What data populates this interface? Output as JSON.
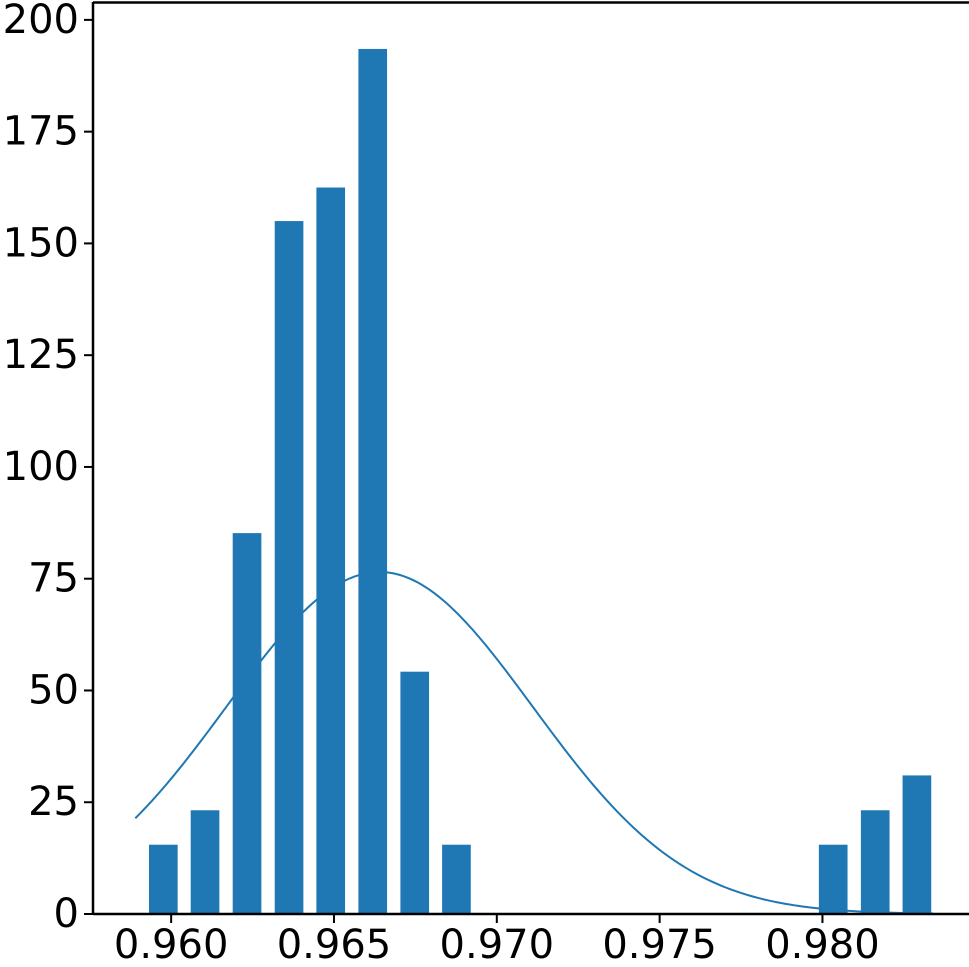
{
  "chart_data": {
    "type": "bar",
    "title": "",
    "xlabel": "",
    "ylabel": "",
    "xlim": [
      0.9576,
      0.9845
    ],
    "ylim": [
      0,
      204
    ],
    "grid": false,
    "legend": "none",
    "bar_color": "#1f77b4",
    "bar_width": 0.00088,
    "x_ticks": [
      {
        "value": 0.96,
        "label": "0.960"
      },
      {
        "value": 0.965,
        "label": "0.965"
      },
      {
        "value": 0.97,
        "label": "0.970"
      },
      {
        "value": 0.975,
        "label": "0.975"
      },
      {
        "value": 0.98,
        "label": "0.980"
      }
    ],
    "y_ticks": [
      {
        "value": 0,
        "label": "0"
      },
      {
        "value": 25,
        "label": "25"
      },
      {
        "value": 50,
        "label": "50"
      },
      {
        "value": 75,
        "label": "75"
      },
      {
        "value": 100,
        "label": "100"
      },
      {
        "value": 125,
        "label": "125"
      },
      {
        "value": 150,
        "label": "150"
      },
      {
        "value": 175,
        "label": "175"
      },
      {
        "value": 200,
        "label": "200"
      }
    ],
    "series": [
      {
        "type": "bar",
        "x": [
          0.95976,
          0.96104,
          0.96233,
          0.96362,
          0.9649,
          0.96619,
          0.96748,
          0.96876,
          0.98033,
          0.98162,
          0.9829
        ],
        "values": [
          15.5,
          23.2,
          85.2,
          155,
          162.5,
          193.5,
          54.2,
          15.5,
          15.5,
          23.2,
          31
        ]
      },
      {
        "type": "line",
        "color": "#1f77b4",
        "mean": 0.9664,
        "std": 0.0047,
        "peak": 76.5,
        "x_range": [
          0.9589,
          0.9834
        ]
      }
    ]
  }
}
